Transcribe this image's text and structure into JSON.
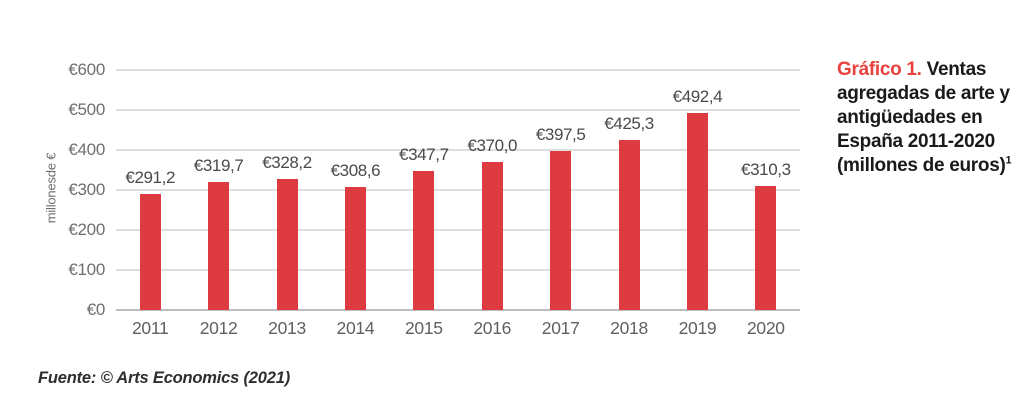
{
  "title": {
    "prefix": "Gráfico 1.",
    "text": "Ventas agregadas de arte y antigüedades en España 2011-2020 (millones de euros)",
    "footnote_marker": "1"
  },
  "source": "Fuente: © Arts Economics (2021)",
  "colors": {
    "bar": "#DE3A41",
    "title_accent": "#E8423E",
    "gridline": "#DEDEDE",
    "axis_line": "#BDBDBD",
    "axis_text": "#6E6E6E",
    "value_text": "#4A4A4A"
  },
  "chart_data": {
    "type": "bar",
    "title": "Ventas agregadas de arte y antigüedades en España 2011-2020 (millones de euros)",
    "categories": [
      "2011",
      "2012",
      "2013",
      "2014",
      "2015",
      "2016",
      "2017",
      "2018",
      "2019",
      "2020"
    ],
    "values": [
      291.2,
      319.7,
      328.2,
      308.6,
      347.7,
      370.0,
      397.5,
      425.3,
      492.4,
      310.3
    ],
    "value_labels": [
      "€291,2",
      "€319,7",
      "€328,2",
      "€308,6",
      "€347,7",
      "€370,0",
      "€397,5",
      "€425,3",
      "€492,4",
      "€310,3"
    ],
    "xlabel": "",
    "ylabel": "millonesde €",
    "y_ticks": [
      "€600",
      "€500",
      "€400",
      "€300",
      "€200",
      "€100",
      "€0"
    ],
    "ylim": [
      0,
      600
    ],
    "grid": true,
    "legend": "none",
    "bar_color": "#DE3A41"
  }
}
